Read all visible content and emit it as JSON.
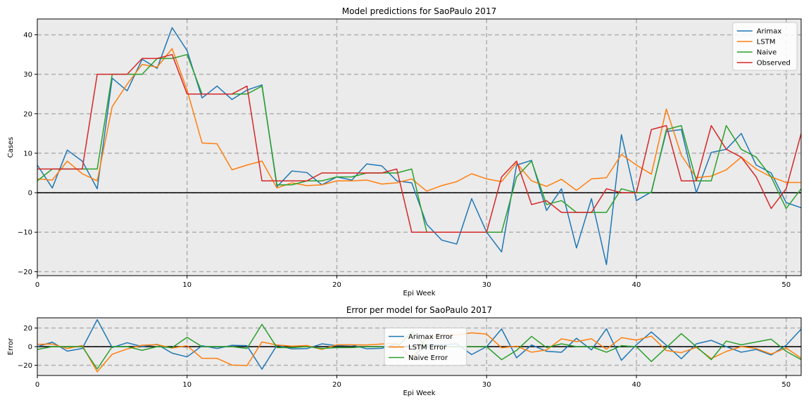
{
  "chart_data": [
    {
      "type": "line",
      "title": "Model predictions for SaoPaulo 2017",
      "xlabel": "Epi Week",
      "ylabel": "Cases",
      "xlim": [
        0,
        51
      ],
      "ylim": [
        -21,
        44
      ],
      "xticks": [
        0,
        10,
        20,
        30,
        40,
        50
      ],
      "yticks": [
        -20,
        -10,
        0,
        10,
        20,
        30,
        40
      ],
      "grid": true,
      "legend": "top-right",
      "x": [
        0,
        1,
        2,
        3,
        4,
        5,
        6,
        7,
        8,
        9,
        10,
        11,
        12,
        13,
        14,
        15,
        16,
        17,
        18,
        19,
        20,
        21,
        22,
        23,
        24,
        25,
        26,
        27,
        28,
        29,
        30,
        31,
        32,
        33,
        34,
        35,
        36,
        37,
        38,
        39,
        40,
        41,
        42,
        43,
        44,
        45,
        46,
        47,
        48,
        49,
        50,
        51
      ],
      "series": [
        {
          "name": "Arimax",
          "color": "#1f77b4",
          "values": [
            7,
            1.2,
            10.8,
            8,
            1,
            29,
            25.8,
            33.8,
            31.5,
            41.8,
            36,
            24,
            27,
            23.6,
            26,
            27.3,
            1.5,
            5.5,
            5.1,
            2,
            4,
            3.2,
            7.3,
            6.8,
            3,
            2.5,
            -8,
            -12,
            -13,
            -1.5,
            -10,
            -15,
            7,
            8.2,
            -4.5,
            1,
            -14,
            -1.5,
            -18.2,
            14.7,
            -2,
            0.2,
            15.5,
            16,
            0,
            10.2,
            11,
            15,
            7,
            5,
            -2.5,
            -3.8
          ]
        },
        {
          "name": "LSTM",
          "color": "#ff7f0e",
          "values": [
            3.5,
            3.2,
            8,
            4.8,
            3,
            21.8,
            27.5,
            32.5,
            31.8,
            36.5,
            26,
            12.6,
            12.4,
            5.8,
            7,
            8,
            1.2,
            2.5,
            1.8,
            2,
            3,
            3,
            3.2,
            2.2,
            2.5,
            3.5,
            0.4,
            1.8,
            2.8,
            4.8,
            3.5,
            2.8,
            7.5,
            3,
            1.6,
            3.4,
            0.6,
            3.5,
            3.8,
            9.7,
            7,
            4.7,
            21.2,
            9.5,
            3.8,
            4.2,
            5.8,
            9,
            6,
            4,
            2.6,
            2.6
          ]
        },
        {
          "name": "Naive",
          "color": "#2ca02c",
          "values": [
            3,
            6,
            6,
            6,
            6,
            30,
            30,
            30,
            34,
            34,
            35,
            25,
            25,
            25,
            25,
            27,
            2,
            2,
            3,
            3,
            4,
            4,
            5,
            5,
            5,
            6,
            -10,
            -10,
            -10,
            -10,
            -10,
            -10,
            4,
            8,
            -3,
            -2,
            -5,
            -5,
            -5,
            1,
            0,
            0,
            16,
            17,
            3,
            3,
            17,
            11,
            9,
            4,
            -4,
            1
          ]
        },
        {
          "name": "Observed",
          "color": "#d62728",
          "values": [
            6,
            6,
            6,
            6,
            30,
            30,
            30,
            34,
            34,
            35,
            25,
            25,
            25,
            25,
            27,
            3,
            3,
            3,
            3,
            5,
            5,
            5,
            5,
            5,
            6,
            -10,
            -10,
            -10,
            -10,
            -10,
            -10,
            4,
            8,
            -3,
            -2,
            -5,
            -5,
            -5,
            1,
            0,
            0,
            16,
            17,
            3,
            3,
            17,
            11,
            9,
            4,
            -4,
            1,
            15
          ]
        }
      ]
    },
    {
      "type": "line",
      "title": "Error per model for SaoPaulo 2017",
      "xlabel": "Epi Week",
      "ylabel": "Error",
      "xlim": [
        0,
        51
      ],
      "ylim": [
        -31,
        31
      ],
      "xticks": [
        0,
        10,
        20,
        30,
        40,
        50
      ],
      "yticks": [
        -20,
        0,
        20
      ],
      "grid": true,
      "legend": "center",
      "x": [
        0,
        1,
        2,
        3,
        4,
        5,
        6,
        7,
        8,
        9,
        10,
        11,
        12,
        13,
        14,
        15,
        16,
        17,
        18,
        19,
        20,
        21,
        22,
        23,
        24,
        25,
        26,
        27,
        28,
        29,
        30,
        31,
        32,
        33,
        34,
        35,
        36,
        37,
        38,
        39,
        40,
        41,
        42,
        43,
        44,
        45,
        46,
        47,
        48,
        49,
        50,
        51
      ],
      "series": [
        {
          "name": "Arimax Error",
          "color": "#1f77b4",
          "values": [
            0,
            4.8,
            -4.8,
            -2,
            29,
            -1,
            4.2,
            0,
            2.5,
            -7,
            -11,
            1,
            -2,
            1.4,
            1,
            -24.3,
            1.5,
            -2.5,
            -2.1,
            3,
            1,
            1.8,
            -2.3,
            -1.8,
            3,
            -12.5,
            2,
            2,
            3,
            -8.5,
            0,
            19,
            -12,
            1.8,
            -5,
            -6,
            9,
            -3.5,
            19.2,
            -14.7,
            2,
            15.8,
            1.5,
            -13,
            3,
            6.8,
            0,
            -6,
            -3,
            -9,
            1.5,
            18.8
          ]
        },
        {
          "name": "LSTM Error",
          "color": "#ff7f0e",
          "values": [
            2.5,
            2.8,
            -2,
            1.2,
            -27,
            -8.2,
            -2.5,
            1.5,
            2.2,
            -1.5,
            1,
            -12.6,
            -12.6,
            -19.8,
            -20.3,
            5,
            1.8,
            0.5,
            1.2,
            -3,
            2,
            2,
            1.8,
            2.8,
            3.5,
            -13.5,
            10.4,
            11.8,
            12.8,
            14.8,
            13.5,
            -1.2,
            0.5,
            -6,
            -3.6,
            8.4,
            5.4,
            8.5,
            -2.8,
            9.7,
            7,
            11.3,
            -4.2,
            -6.5,
            -0.8,
            -12.8,
            -5.2,
            0,
            -2,
            -8,
            -1.4,
            -12.4
          ]
        },
        {
          "name": "Naive Error",
          "color": "#2ca02c",
          "values": [
            -3,
            0,
            0,
            0,
            -24,
            0,
            0,
            -4,
            0,
            -1,
            10,
            0,
            0,
            0,
            -2,
            24,
            -1,
            -1,
            0,
            -2,
            -1,
            -1,
            0,
            0,
            -1,
            16,
            0,
            0,
            0,
            0,
            0,
            -14,
            -4,
            11,
            -1,
            3,
            0,
            0,
            -6,
            1,
            0,
            -16,
            -1,
            14,
            0,
            -14,
            6,
            2,
            5,
            8,
            -5,
            -14
          ]
        }
      ]
    }
  ]
}
